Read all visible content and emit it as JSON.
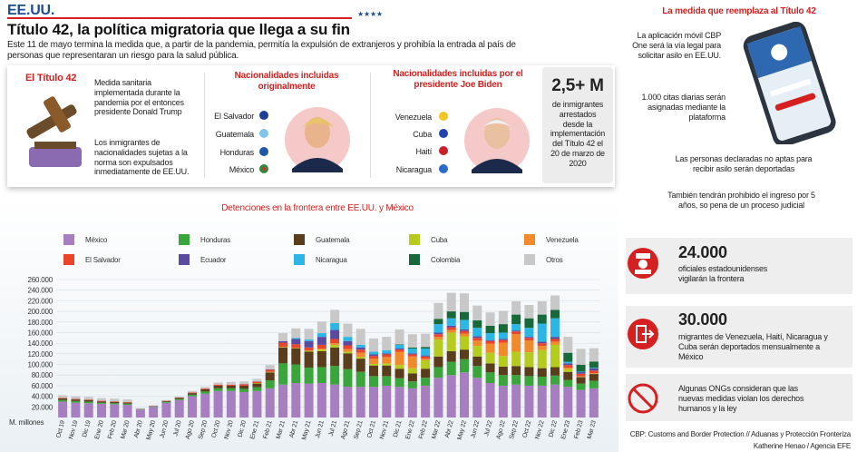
{
  "header": {
    "section": "EE.UU.",
    "title": "Título 42, la política migratoria que llega a su fin",
    "intro": "Este 11 de mayo termina la medida que, a partir de la pandemia, permitía la expulsión de extranjeros y prohibía la entrada al país de personas que representaran un riesgo para la salud pública."
  },
  "title42": {
    "heading": "El Título 42",
    "text1": "Medida sanitaria implementada durante la pandemia por el entonces presidente Donald Trump",
    "text2": "Los inmigrantes de nacionalidades sujetas a la norma son expulsados inmediatamente de EE.UU."
  },
  "original": {
    "heading": "Nacionalidades incluidas originalmente",
    "countries": [
      "El Salvador",
      "Guatemala",
      "Honduras",
      "México"
    ]
  },
  "biden": {
    "heading": "Nacionalidades incluidas por el presidente Joe Biden",
    "countries": [
      "Venezuela",
      "Cuba",
      "Haití",
      "Nicaragua"
    ]
  },
  "stat": {
    "value": "2,5+ M",
    "text": "de inmigrantes arrestados desde la implementación del Título 42 el 20 de marzo de 2020"
  },
  "replacement": {
    "heading": "La medida que reemplaza al Título 42",
    "items": [
      "La aplicación móvil CBP One será la vía legal para solicitar asilo en EE.UU.",
      "1.000 citas diarias serán asignadas mediante la plataforma"
    ],
    "notes": [
      "Las personas declaradas no aptas para recibir asilo serán deportadas",
      "También tendrán prohibido el ingreso por 5 años, so pena de un proceso judicial"
    ]
  },
  "facts": [
    {
      "value": "24.000",
      "text": "oficiales estadounidenses vigilarán la frontera"
    },
    {
      "value": "30.000",
      "text": "migrantes de Venezuela, Haití, Nicaragua y Cuba serán deportados mensualmente a México"
    }
  ],
  "ong": "Algunas ONGs consideran que las nuevas medidas violan los derechos humanos y la ley",
  "source": [
    "CBP: Customs and Border Protection // Aduanas y Protección Fronteriza",
    "Katherine Henao / Agencia EFE"
  ],
  "chart_data": {
    "type": "stacked_bar",
    "title": "Detenciones en la frontera entre EE.UU. y México",
    "y_label": "M. millones",
    "categories": [
      "Oct 19",
      "Nov 19",
      "Dic 19",
      "Ene 20",
      "Feb 20",
      "Mar 20",
      "Abr 20",
      "May 20",
      "Jun 20",
      "Jul 20",
      "Ago 20",
      "Sep 20",
      "Oct 20",
      "Nov 20",
      "Dic 20",
      "Ene 21",
      "Feb 21",
      "Mar 21",
      "Abr 21",
      "May 21",
      "Jun 21",
      "Jul 21",
      "Ago 21",
      "Sep 21",
      "Oct 21",
      "Nov 21",
      "Dic 21",
      "Ene 22",
      "Feb 22",
      "Mar 22",
      "Abr 22",
      "May 22",
      "Jun 22",
      "Jul 22",
      "Ago 22",
      "Sep 22",
      "Oct 22",
      "Nov 22",
      "Dic 22",
      "Ene 23",
      "Feb 23",
      "Mar 23"
    ],
    "ylim": [
      0,
      260000
    ],
    "yticks": [
      {
        "value": 20000,
        "label": "20.000"
      },
      {
        "value": 40000,
        "label": "40.000"
      },
      {
        "value": 60000,
        "label": "60.000"
      },
      {
        "value": 80000,
        "label": "80.000"
      },
      {
        "value": 100000,
        "label": "100.000"
      },
      {
        "value": 120000,
        "label": "120.000"
      },
      {
        "value": 140000,
        "label": "140.000"
      },
      {
        "value": 160000,
        "label": "160.000"
      },
      {
        "value": 180000,
        "label": "180.000"
      },
      {
        "value": 200000,
        "label": "200.000"
      },
      {
        "value": 220000,
        "label": "220.000"
      },
      {
        "value": 240000,
        "label": "240.000"
      },
      {
        "value": 260000,
        "label": "260.000"
      }
    ],
    "grid": true,
    "series": [
      {
        "name": "México",
        "color": "#a77fc0",
        "values": [
          30000,
          28000,
          27000,
          26000,
          25000,
          24000,
          15000,
          20000,
          28000,
          33000,
          40000,
          45000,
          50000,
          50000,
          48000,
          50000,
          55000,
          62000,
          65000,
          64000,
          65000,
          62000,
          58000,
          58000,
          58000,
          60000,
          58000,
          55000,
          60000,
          75000,
          80000,
          85000,
          75000,
          65000,
          60000,
          62000,
          60000,
          60000,
          62000,
          58000,
          52000,
          55000
        ]
      },
      {
        "name": "Honduras",
        "color": "#3aa53a",
        "values": [
          3000,
          3000,
          3000,
          2000,
          2000,
          2000,
          500,
          800,
          1500,
          2000,
          3000,
          4000,
          5000,
          5000,
          6000,
          7000,
          15000,
          40000,
          35000,
          30000,
          30000,
          35000,
          33000,
          28000,
          20000,
          18000,
          16000,
          13000,
          15000,
          20000,
          25000,
          25000,
          22000,
          20000,
          20000,
          18000,
          18000,
          17000,
          17000,
          13000,
          12000,
          14000
        ]
      },
      {
        "name": "Guatemala",
        "color": "#5a3e1b",
        "values": [
          3000,
          3000,
          3000,
          2500,
          2500,
          2000,
          500,
          800,
          1500,
          2000,
          3000,
          4000,
          5000,
          5000,
          6000,
          7000,
          15000,
          30000,
          30000,
          30000,
          30000,
          35000,
          30000,
          25000,
          20000,
          20000,
          18000,
          15000,
          17000,
          20000,
          20000,
          18000,
          18000,
          17000,
          16000,
          17000,
          17000,
          16000,
          16000,
          15000,
          12000,
          13000
        ]
      },
      {
        "name": "Cuba",
        "color": "#b5cc1f",
        "values": [
          0,
          0,
          0,
          0,
          0,
          0,
          0,
          0,
          0,
          0,
          0,
          0,
          0,
          0,
          0,
          1000,
          1000,
          1000,
          1000,
          2000,
          3000,
          5000,
          3000,
          3000,
          3000,
          4000,
          7000,
          10000,
          16000,
          32000,
          35000,
          25000,
          20000,
          20000,
          20000,
          27000,
          28000,
          34000,
          42000,
          5000,
          500,
          500
        ]
      },
      {
        "name": "Venezuela",
        "color": "#f08a2a",
        "values": [
          0,
          0,
          0,
          0,
          0,
          0,
          0,
          0,
          0,
          0,
          0,
          0,
          0,
          0,
          0,
          0,
          0,
          0,
          0,
          0,
          2000,
          3000,
          5000,
          8000,
          10000,
          12000,
          25000,
          22000,
          3000,
          5000,
          5000,
          5000,
          10000,
          17000,
          25000,
          33000,
          22000,
          8000,
          6000,
          3000,
          1000,
          1000
        ]
      },
      {
        "name": "El Salvador",
        "color": "#e8452a",
        "values": [
          1000,
          1000,
          1000,
          1000,
          1000,
          1000,
          200,
          300,
          500,
          700,
          1000,
          1500,
          2000,
          2000,
          2500,
          2500,
          4000,
          8000,
          7000,
          6000,
          7000,
          8000,
          7000,
          6000,
          5000,
          5000,
          4000,
          4000,
          4000,
          5000,
          5000,
          5000,
          5000,
          5000,
          5000,
          5000,
          5000,
          5000,
          5000,
          5000,
          5000,
          5000
        ]
      },
      {
        "name": "Ecuador",
        "color": "#5a4aa0",
        "values": [
          0,
          0,
          0,
          0,
          0,
          0,
          0,
          0,
          0,
          0,
          0,
          0,
          0,
          0,
          500,
          500,
          1000,
          3000,
          10000,
          12000,
          15000,
          17000,
          8000,
          4000,
          3000,
          2000,
          2000,
          2000,
          2000,
          3000,
          3000,
          3000,
          3000,
          2000,
          2000,
          2000,
          2000,
          3000,
          4000,
          3000,
          3000,
          4000
        ]
      },
      {
        "name": "Nicaragua",
        "color": "#2bb6e6",
        "values": [
          0,
          0,
          0,
          0,
          0,
          0,
          0,
          0,
          0,
          0,
          0,
          0,
          0,
          0,
          0,
          0,
          0,
          0,
          2000,
          3000,
          7000,
          13000,
          8000,
          5000,
          5000,
          6000,
          7000,
          9000,
          13000,
          16000,
          14000,
          18000,
          16000,
          13000,
          12000,
          12000,
          17000,
          34000,
          35000,
          3000,
          1000,
          1000
        ]
      },
      {
        "name": "Colombia",
        "color": "#17693a",
        "values": [
          0,
          0,
          0,
          0,
          0,
          0,
          0,
          0,
          0,
          0,
          0,
          0,
          0,
          0,
          0,
          0,
          0,
          0,
          0,
          0,
          0,
          0,
          0,
          0,
          0,
          0,
          1000,
          2000,
          3000,
          10000,
          13000,
          15000,
          14000,
          14000,
          16000,
          18000,
          18000,
          17000,
          16000,
          17000,
          13000,
          12000
        ]
      },
      {
        "name": "Otros",
        "color": "#c8c8c8",
        "values": [
          5000,
          5000,
          5000,
          5000,
          5000,
          5000,
          1000,
          1000,
          1500,
          2000,
          3000,
          3000,
          4000,
          5000,
          5000,
          5000,
          8000,
          15000,
          18000,
          20000,
          22000,
          25000,
          25000,
          30000,
          25000,
          25000,
          28000,
          25000,
          25000,
          30000,
          35000,
          35000,
          28000,
          25000,
          25000,
          25000,
          25000,
          25000,
          27000,
          30000,
          30000,
          25000
        ]
      }
    ]
  }
}
